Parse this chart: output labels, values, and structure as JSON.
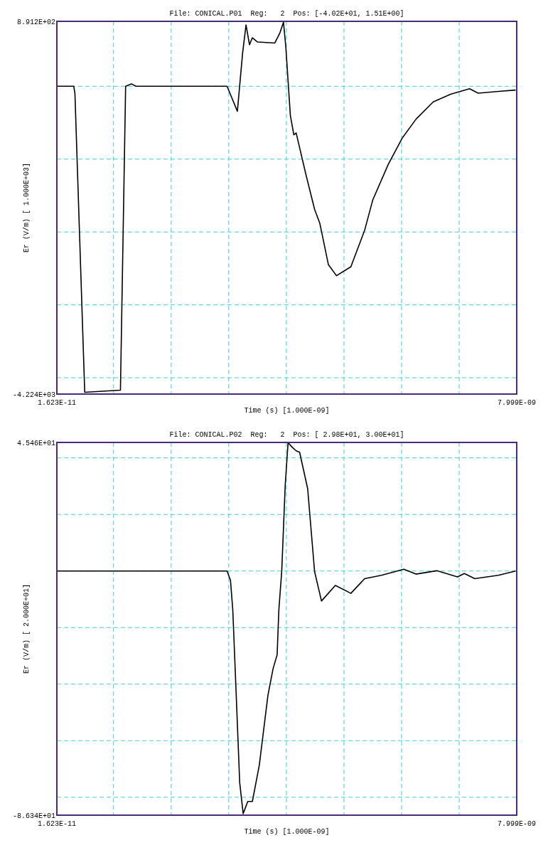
{
  "chart_data": [
    {
      "type": "line",
      "title": "File: CONICAL.P01  Reg:   2  Pos: [-4.02E+01, 1.51E+00]",
      "xlabel": "Time (s) [1.000E-09]",
      "ylabel": "Er (V/m) [ 1.000E+03]",
      "x": [
        1.623e-11,
        3.1e-10,
        3.3e-10,
        5e-10,
        1.12e-09,
        1.21e-09,
        1.31e-09,
        1.39e-09,
        2.97e-09,
        3.15e-09,
        3.24e-09,
        3.3e-09,
        3.36e-09,
        3.41e-09,
        3.5e-09,
        3.8e-09,
        3.89e-09,
        3.95e-09,
        3.99e-09,
        4.07e-09,
        4.13e-09,
        4.17e-09,
        4.34e-09,
        4.49e-09,
        4.58e-09,
        4.73e-09,
        4.87e-09,
        5.12e-09,
        5.36e-09,
        5.5e-09,
        5.77e-09,
        6.01e-09,
        6.25e-09,
        6.55e-09,
        6.85e-09,
        7.18e-09,
        7.33e-09,
        7.68e-09,
        7.98e-09
      ],
      "series": [
        {
          "color": "#000000",
          "values": [
            0,
            0,
            -100,
            -4200,
            -4170,
            0,
            33,
            0,
            0,
            -342,
            451,
            841,
            570,
            666,
            608,
            594,
            737,
            880,
            547,
            -404,
            -666,
            -640,
            -1212,
            -1688,
            -1878,
            -2448,
            -2600,
            -2477,
            -1973,
            -1560,
            -1070,
            -713,
            -452,
            -214,
            -109,
            -33,
            -95,
            -71,
            -52
          ]
        }
      ],
      "xlim": [
        1.623e-11,
        7.999e-09
      ],
      "ylim": [
        -4224,
        891.2
      ],
      "xticks": [
        {
          "value": 1.623e-11,
          "label": "1.623E-11"
        },
        {
          "value": 1e-09,
          "label": null
        },
        {
          "value": 2e-09,
          "label": null
        },
        {
          "value": 3e-09,
          "label": null
        },
        {
          "value": 4e-09,
          "label": null
        },
        {
          "value": 5e-09,
          "label": null
        },
        {
          "value": 6e-09,
          "label": null
        },
        {
          "value": 7e-09,
          "label": null
        },
        {
          "value": 7.999e-09,
          "label": "7.999E-09"
        }
      ],
      "yticks": [
        {
          "value": -4224,
          "label": "-4.224E+03"
        },
        {
          "value": -4000,
          "label": null
        },
        {
          "value": -3000,
          "label": null
        },
        {
          "value": -2000,
          "label": null
        },
        {
          "value": -1000,
          "label": null
        },
        {
          "value": 0,
          "label": null
        },
        {
          "value": 891.2,
          "label": "8.912E+02"
        }
      ],
      "grid": true
    },
    {
      "type": "line",
      "title": "File: CONICAL.P02  Reg:   2  Pos: [ 2.98E+01, 3.00E+01]",
      "xlabel": "Time (s) [1.000E-09]",
      "ylabel": "Er (V/m) [ 2.000E+01]",
      "x": [
        1.623e-11,
        2.97e-09,
        3.03e-09,
        3.07e-09,
        3.13e-09,
        3.19e-09,
        3.25e-09,
        3.33e-09,
        3.41e-09,
        3.53e-09,
        3.68e-09,
        3.77e-09,
        3.84e-09,
        3.87e-09,
        3.92e-09,
        3.98e-09,
        4.03e-09,
        4.1e-09,
        4.17e-09,
        4.23e-09,
        4.37e-09,
        4.49e-09,
        4.61e-09,
        4.85e-09,
        5.12e-09,
        5.36e-09,
        5.65e-09,
        6.04e-09,
        6.25e-09,
        6.61e-09,
        6.97e-09,
        7.09e-09,
        7.27e-09,
        7.68e-09,
        7.98e-09
      ],
      "series": [
        {
          "color": "#000000",
          "values": [
            0,
            0,
            -3.3,
            -13.7,
            -44,
            -74.8,
            -85.8,
            -81.5,
            -81.5,
            -68.7,
            -44,
            -34.5,
            -29.6,
            -13.7,
            0,
            30.3,
            45.4,
            43.8,
            42.5,
            42,
            29.1,
            -0.2,
            -10.6,
            -5.1,
            -7.9,
            -2.7,
            -1.5,
            0.6,
            -1.1,
            0.1,
            -2.1,
            -0.9,
            -2.7,
            -1.5,
            0
          ]
        }
      ],
      "xlim": [
        1.623e-11,
        7.999e-09
      ],
      "ylim": [
        -86.34,
        45.46
      ],
      "xticks": [
        {
          "value": 1.623e-11,
          "label": "1.623E-11"
        },
        {
          "value": 1e-09,
          "label": null
        },
        {
          "value": 2e-09,
          "label": null
        },
        {
          "value": 3e-09,
          "label": null
        },
        {
          "value": 4e-09,
          "label": null
        },
        {
          "value": 5e-09,
          "label": null
        },
        {
          "value": 6e-09,
          "label": null
        },
        {
          "value": 7e-09,
          "label": null
        },
        {
          "value": 7.999e-09,
          "label": "7.999E-09"
        }
      ],
      "yticks": [
        {
          "value": -86.34,
          "label": "-8.634E+01"
        },
        {
          "value": -80,
          "label": null
        },
        {
          "value": -60,
          "label": null
        },
        {
          "value": -40,
          "label": null
        },
        {
          "value": -20,
          "label": null
        },
        {
          "value": 0,
          "label": null
        },
        {
          "value": 20,
          "label": null
        },
        {
          "value": 40,
          "label": null
        },
        {
          "value": 45.46,
          "label": "4.546E+01"
        }
      ],
      "grid": true
    }
  ]
}
